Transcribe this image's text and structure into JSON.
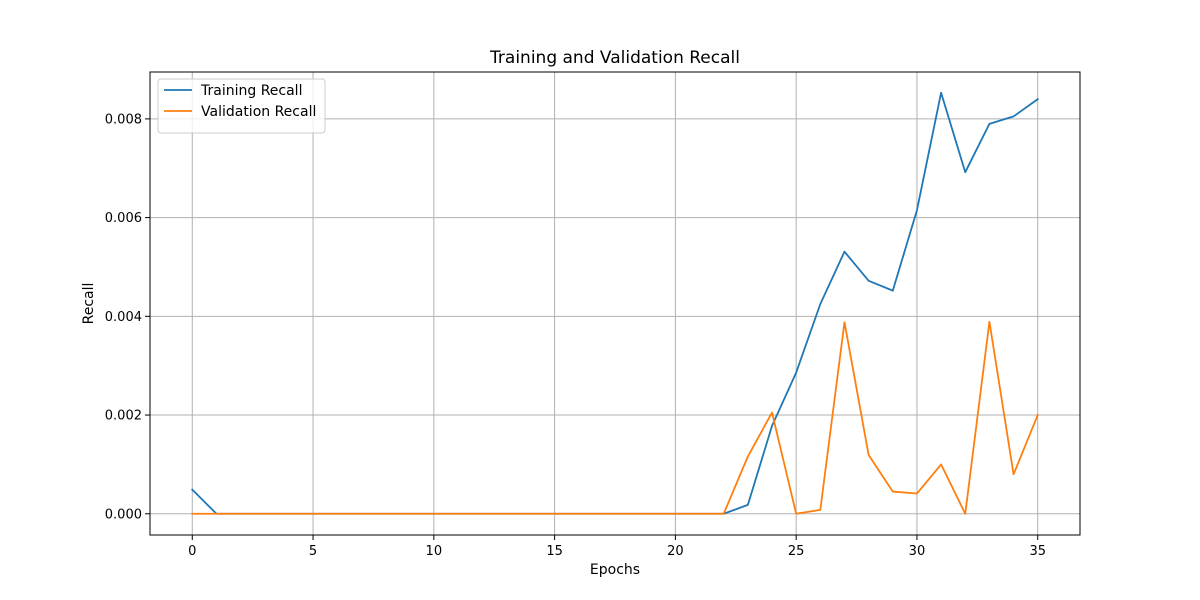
{
  "chart_data": {
    "type": "line",
    "title": "Training and Validation Recall",
    "xlabel": "Epochs",
    "ylabel": "Recall",
    "xlim": [
      -1.75,
      36.75
    ],
    "ylim": [
      -0.00043,
      0.00895
    ],
    "xticks": [
      0,
      5,
      10,
      15,
      20,
      25,
      30,
      35
    ],
    "xtick_labels": [
      "0",
      "5",
      "10",
      "15",
      "20",
      "25",
      "30",
      "35"
    ],
    "yticks": [
      0.0,
      0.002,
      0.004,
      0.006,
      0.008
    ],
    "ytick_labels": [
      "0.000",
      "0.002",
      "0.004",
      "0.006",
      "0.008"
    ],
    "grid": true,
    "legend_position": "top-left",
    "x": [
      0,
      1,
      2,
      3,
      4,
      5,
      6,
      7,
      8,
      9,
      10,
      11,
      12,
      13,
      14,
      15,
      16,
      17,
      18,
      19,
      20,
      21,
      22,
      23,
      24,
      25,
      26,
      27,
      28,
      29,
      30,
      31,
      32,
      33,
      34,
      35
    ],
    "series": [
      {
        "name": "Training Recall",
        "color": "#1f77b4",
        "values": [
          0.00049,
          0,
          0,
          0,
          0,
          0,
          0,
          0,
          0,
          0,
          0,
          0,
          0,
          0,
          0,
          0,
          0,
          0,
          0,
          0,
          0,
          0,
          0,
          0.00018,
          0.00178,
          0.00286,
          0.00425,
          0.00531,
          0.00472,
          0.00452,
          0.00615,
          0.00853,
          0.00692,
          0.0079,
          0.00805,
          0.0084
        ]
      },
      {
        "name": "Validation Recall",
        "color": "#ff7f0e",
        "values": [
          0,
          0,
          0,
          0,
          0,
          0,
          0,
          0,
          0,
          0,
          0,
          0,
          0,
          0,
          0,
          0,
          0,
          0,
          0,
          0,
          0,
          0,
          0,
          0.00116,
          0.00205,
          0,
          8e-05,
          0.00388,
          0.00119,
          0.00045,
          0.00041,
          0.001,
          0,
          0.00389,
          0.0008,
          0.002
        ]
      }
    ]
  }
}
